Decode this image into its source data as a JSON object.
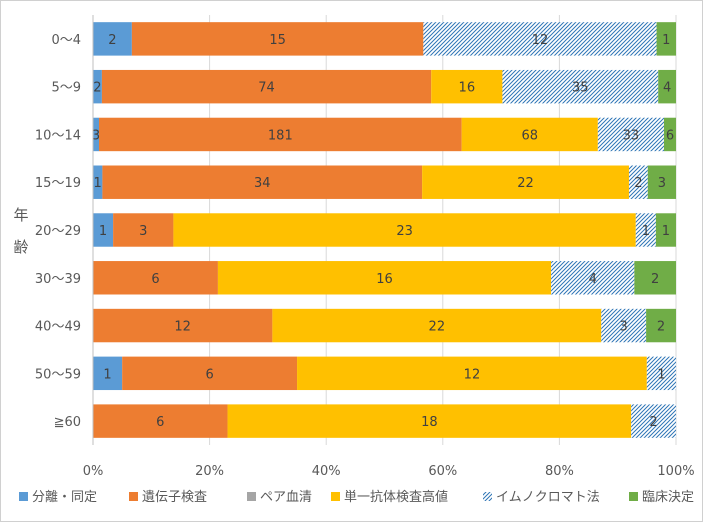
{
  "chart_data": {
    "type": "bar",
    "orientation": "horizontal",
    "stacking": "percent",
    "ylabel": "年齢",
    "xlabel": "",
    "xlim": [
      0,
      100
    ],
    "x_ticks": [
      "0%",
      "20%",
      "40%",
      "60%",
      "80%",
      "100%"
    ],
    "categories": [
      "0〜4",
      "5〜9",
      "10〜14",
      "15〜19",
      "20〜29",
      "30〜39",
      "40〜49",
      "50〜59",
      "≧60"
    ],
    "series": [
      {
        "name": "分離・同定",
        "color": "#5B9BD5",
        "pattern": "solid",
        "values": [
          2,
          2,
          3,
          1,
          1,
          0,
          0,
          1,
          0
        ]
      },
      {
        "name": "遺伝子検査",
        "color": "#ED7D31",
        "pattern": "solid",
        "values": [
          15,
          74,
          181,
          34,
          3,
          6,
          12,
          6,
          6
        ]
      },
      {
        "name": "ペア血清",
        "color": "#A5A5A5",
        "pattern": "solid",
        "values": [
          0,
          0,
          0,
          0,
          0,
          0,
          0,
          0,
          0
        ]
      },
      {
        "name": "単一抗体検査高値",
        "color": "#FFC000",
        "pattern": "solid",
        "values": [
          0,
          16,
          68,
          22,
          23,
          16,
          22,
          12,
          18
        ]
      },
      {
        "name": "イムノクロマト法",
        "color": "#2E75B6",
        "pattern": "hatch",
        "values": [
          12,
          35,
          33,
          2,
          1,
          4,
          3,
          1,
          2
        ]
      },
      {
        "name": "臨床決定",
        "color": "#70AD47",
        "pattern": "solid",
        "values": [
          1,
          4,
          6,
          3,
          1,
          2,
          2,
          0,
          0
        ]
      }
    ],
    "legend": "bottom",
    "grid": true
  }
}
